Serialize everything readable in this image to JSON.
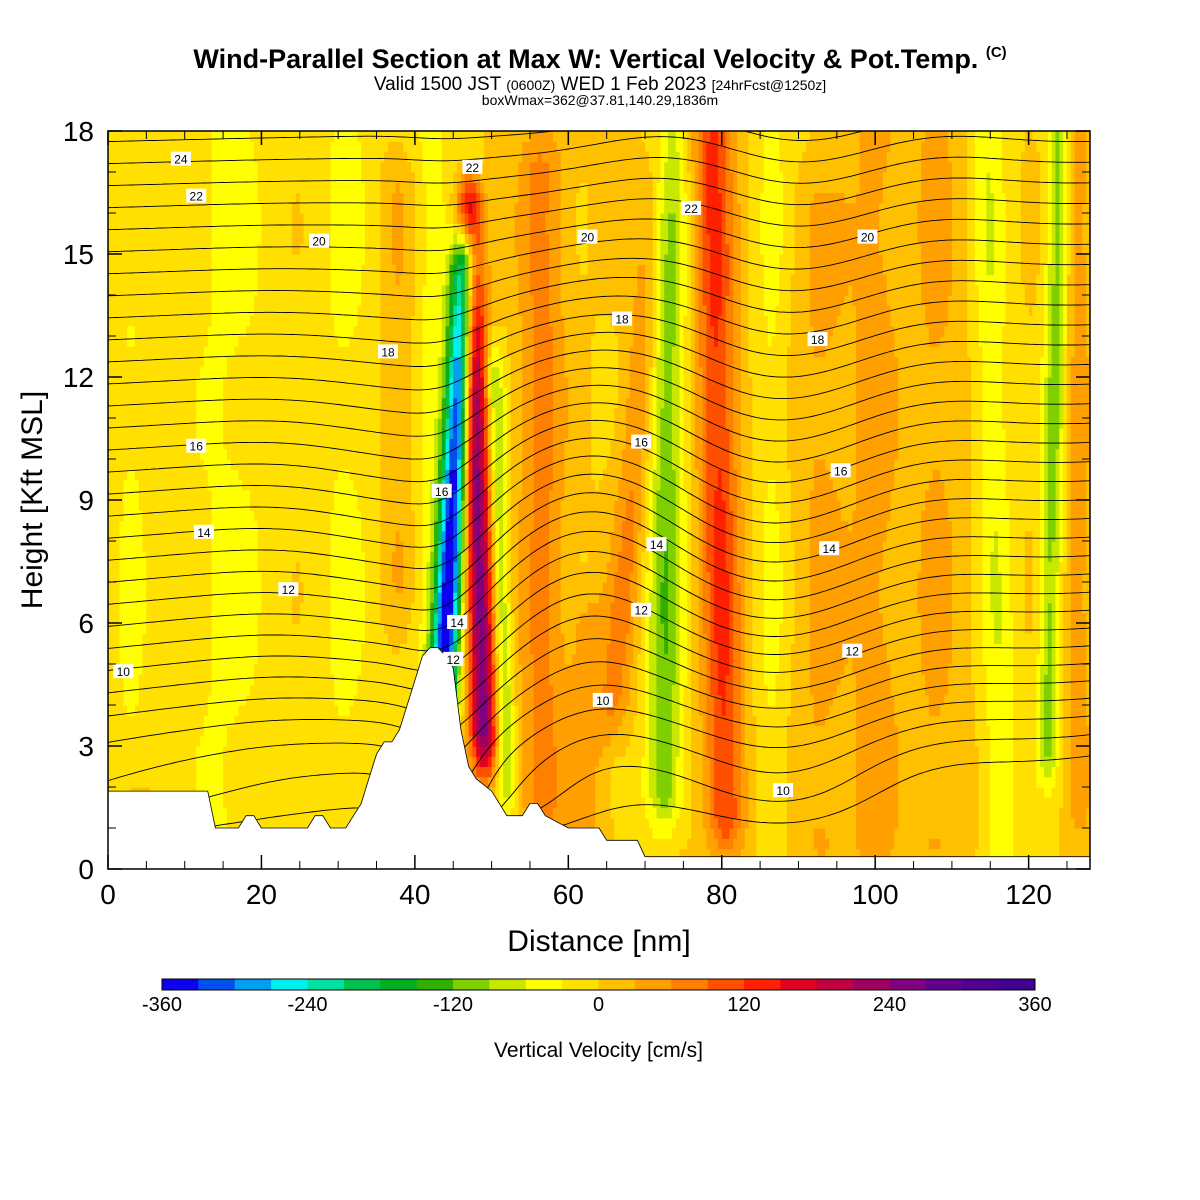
{
  "title": {
    "main": "Wind-Parallel Section at Max W: Vertical Velocity & Pot.Temp.",
    "mark": "(C)",
    "valid_a": "Valid 1500 JST",
    "valid_b": "(0600Z)",
    "valid_c": "WED 1 Feb 2023",
    "valid_d": "[24hrFcst@1250z]",
    "box": "boxWmax=362@37.81,140.29,1836m"
  },
  "chart_data": {
    "type": "heatmap",
    "xlabel": "Distance [nm]",
    "ylabel": "Height [Kft MSL]",
    "xlim": [
      0,
      128
    ],
    "ylim": [
      0,
      18
    ],
    "x_ticks": [
      0,
      20,
      40,
      60,
      80,
      100,
      120
    ],
    "y_ticks": [
      0,
      3,
      6,
      9,
      12,
      15,
      18
    ],
    "colorbar": {
      "label": "Vertical Velocity [cm/s]",
      "tick_labels": [
        "-360",
        "-240",
        "-120",
        "0",
        "120",
        "240",
        "360"
      ],
      "ticks": [
        -360,
        -240,
        -120,
        0,
        120,
        240,
        360
      ],
      "levels": [
        -360,
        -330,
        -300,
        -270,
        -240,
        -210,
        -180,
        -150,
        -120,
        -90,
        -60,
        -30,
        0,
        30,
        60,
        90,
        120,
        150,
        180,
        210,
        240,
        270,
        300,
        330,
        360
      ],
      "colors": [
        "#0c00ee",
        "#0050f0",
        "#00a0f0",
        "#00f0f0",
        "#00e0a0",
        "#00c050",
        "#00b020",
        "#30b000",
        "#80d000",
        "#c8e800",
        "#ffff00",
        "#ffe000",
        "#ffc000",
        "#ffa000",
        "#ff8000",
        "#ff5000",
        "#ff2000",
        "#e00020",
        "#c00040",
        "#a00060",
        "#800080",
        "#600090",
        "#500090",
        "#400090"
      ]
    },
    "terrain": [
      [
        0,
        1.9
      ],
      [
        13,
        1.9
      ],
      [
        14,
        1.0
      ],
      [
        17,
        1.0
      ],
      [
        18,
        1.3
      ],
      [
        19,
        1.3
      ],
      [
        20,
        1.0
      ],
      [
        26,
        1.0
      ],
      [
        27,
        1.3
      ],
      [
        28,
        1.3
      ],
      [
        29,
        1.0
      ],
      [
        31,
        1.0
      ],
      [
        32,
        1.3
      ],
      [
        33,
        1.6
      ],
      [
        34,
        2.2
      ],
      [
        35,
        2.8
      ],
      [
        36,
        3.1
      ],
      [
        37,
        3.1
      ],
      [
        38,
        3.4
      ],
      [
        39,
        4.0
      ],
      [
        40,
        4.6
      ],
      [
        41,
        5.2
      ],
      [
        42,
        5.4
      ],
      [
        43,
        5.4
      ],
      [
        44,
        5.2
      ],
      [
        45,
        4.9
      ],
      [
        46,
        3.4
      ],
      [
        47,
        2.5
      ],
      [
        48,
        2.2
      ],
      [
        50,
        1.9
      ],
      [
        51,
        1.6
      ],
      [
        52,
        1.3
      ],
      [
        54,
        1.3
      ],
      [
        55,
        1.6
      ],
      [
        56,
        1.6
      ],
      [
        57,
        1.3
      ],
      [
        60,
        1.0
      ],
      [
        64,
        1.0
      ],
      [
        65,
        0.7
      ],
      [
        69,
        0.7
      ],
      [
        70,
        0.3
      ],
      [
        128,
        0.3
      ]
    ],
    "w_bands": [
      {
        "x": 43.5,
        "y0": 3.6,
        "y1": 14.8,
        "lean": 3.0,
        "width": 1.7,
        "peak": -345
      },
      {
        "x": 49.0,
        "y0": 3.2,
        "y1": 15.8,
        "lean": -1.8,
        "width": 1.7,
        "peak": 255
      },
      {
        "x": 52.0,
        "y0": 2.2,
        "y1": 12.0,
        "lean": -1.6,
        "width": 1.2,
        "peak": -95
      },
      {
        "x": 56.5,
        "y0": 1.5,
        "y1": 17.2,
        "lean": 0.0,
        "width": 3.0,
        "peak": 70
      },
      {
        "x": 66.0,
        "y0": 4.0,
        "y1": 18.5,
        "lean": 6.5,
        "width": 2.2,
        "peak": 65
      },
      {
        "x": 72.5,
        "y0": 1.8,
        "y1": 18.5,
        "lean": 0.5,
        "width": 2.4,
        "peak": -115
      },
      {
        "x": 80.5,
        "y0": 1.2,
        "y1": 18.5,
        "lean": -1.8,
        "width": 2.6,
        "peak": 125
      },
      {
        "x": 86.5,
        "y0": 1.0,
        "y1": 18.5,
        "lean": 0.0,
        "width": 2.2,
        "peak": -35
      },
      {
        "x": 93.0,
        "y0": 0.5,
        "y1": 16.0,
        "lean": 0.0,
        "width": 3.5,
        "peak": 35
      },
      {
        "x": 100.0,
        "y0": 0.5,
        "y1": 18.0,
        "lean": 0.0,
        "width": 3.5,
        "peak": 40
      },
      {
        "x": 108.0,
        "y0": 0.5,
        "y1": 18.0,
        "lean": 0.0,
        "width": 3.5,
        "peak": 35
      },
      {
        "x": 116.5,
        "y0": 0.5,
        "y1": 18.5,
        "lean": -2.0,
        "width": 2.2,
        "peak": -55
      },
      {
        "x": 122.5,
        "y0": 3.0,
        "y1": 18.5,
        "lean": 1.5,
        "width": 1.4,
        "peak": -100
      },
      {
        "x": 126.5,
        "y0": 1.5,
        "y1": 18.0,
        "lean": 0.0,
        "width": 1.6,
        "peak": 45
      },
      {
        "x": 16.0,
        "y0": 0.5,
        "y1": 18.0,
        "lean": 0.0,
        "width": 6.5,
        "peak": -35
      },
      {
        "x": 31.0,
        "y0": 1.8,
        "y1": 18.0,
        "lean": 0.0,
        "width": 4.0,
        "peak": -35
      },
      {
        "x": 38.0,
        "y0": 7.0,
        "y1": 16.5,
        "lean": 0.0,
        "width": 2.5,
        "peak": 30
      },
      {
        "x": 42.0,
        "y0": 5.0,
        "y1": 18.0,
        "lean": 0.0,
        "width": 2.6,
        "peak": -40
      },
      {
        "x": 3.0,
        "y0": 3.0,
        "y1": 13.0,
        "lean": 0.0,
        "width": 2.5,
        "peak": -35
      },
      {
        "x": 62.5,
        "y0": 1.0,
        "y1": 6.0,
        "lean": 0.0,
        "width": 2.5,
        "peak": 40
      }
    ],
    "isentropes": [
      8,
      8.5,
      9,
      9.5,
      10,
      10.5,
      11,
      11.5,
      12,
      12.5,
      13,
      13.5,
      14,
      14.5,
      15,
      15.5,
      16,
      16.5,
      17,
      17.5,
      18,
      18.5,
      19,
      19.5,
      20,
      20.5,
      21,
      21.5,
      22,
      22.5,
      23,
      23.5,
      24,
      24.5,
      25
    ],
    "contour_labels": [
      {
        "text": "24",
        "x": 9.5,
        "y": 17.3
      },
      {
        "text": "22",
        "x": 11.5,
        "y": 16.4
      },
      {
        "text": "22",
        "x": 47.5,
        "y": 17.1
      },
      {
        "text": "22",
        "x": 76.0,
        "y": 16.1
      },
      {
        "text": "20",
        "x": 27.5,
        "y": 15.3
      },
      {
        "text": "20",
        "x": 62.5,
        "y": 15.4
      },
      {
        "text": "20",
        "x": 99.0,
        "y": 15.4
      },
      {
        "text": "18",
        "x": 36.5,
        "y": 12.6
      },
      {
        "text": "18",
        "x": 67.0,
        "y": 13.4
      },
      {
        "text": "18",
        "x": 92.5,
        "y": 12.9
      },
      {
        "text": "16",
        "x": 11.5,
        "y": 10.3
      },
      {
        "text": "16",
        "x": 43.5,
        "y": 9.2
      },
      {
        "text": "16",
        "x": 69.5,
        "y": 10.4
      },
      {
        "text": "16",
        "x": 95.5,
        "y": 9.7
      },
      {
        "text": "14",
        "x": 12.5,
        "y": 8.2
      },
      {
        "text": "14",
        "x": 71.5,
        "y": 7.9
      },
      {
        "text": "14",
        "x": 94.0,
        "y": 7.8
      },
      {
        "text": "14",
        "x": 45.5,
        "y": 6.0
      },
      {
        "text": "12",
        "x": 23.5,
        "y": 6.8
      },
      {
        "text": "12",
        "x": 69.5,
        "y": 6.3
      },
      {
        "text": "12",
        "x": 97.0,
        "y": 5.3
      },
      {
        "text": "12",
        "x": 45.0,
        "y": 5.1
      },
      {
        "text": "10",
        "x": 2.0,
        "y": 4.8
      },
      {
        "text": "10",
        "x": 64.5,
        "y": 4.1
      },
      {
        "text": "10",
        "x": 88.0,
        "y": 1.9
      }
    ]
  }
}
